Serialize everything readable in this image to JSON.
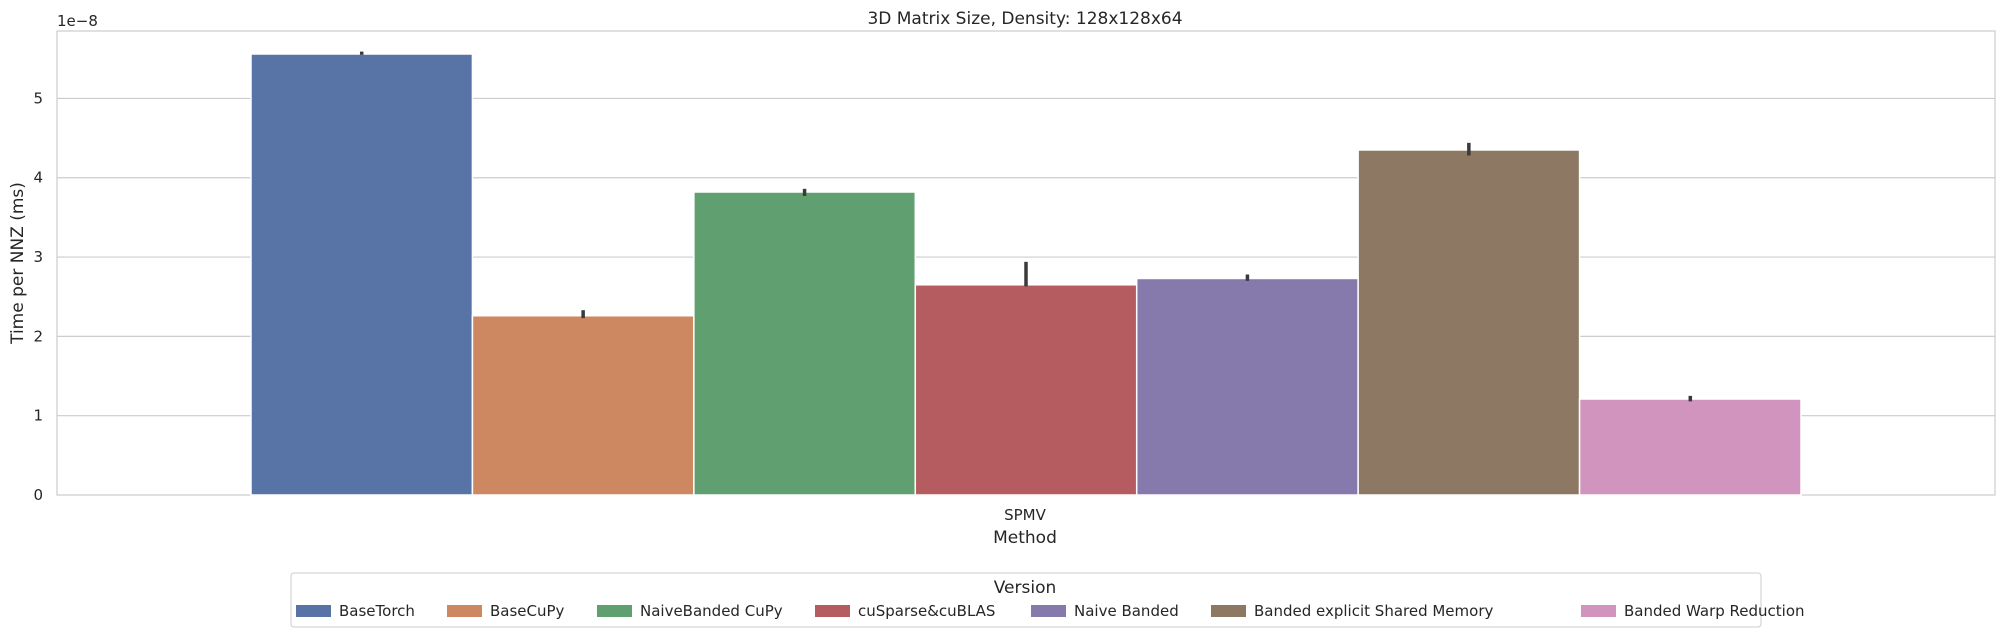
{
  "chart_data": {
    "type": "bar",
    "title": "3D Matrix Size, Density: 128x128x64",
    "xlabel": "Method",
    "ylabel": "Time per NNZ (ms)",
    "y_scale_label": "1e−8",
    "categories": [
      "SPMV"
    ],
    "ylim": [
      0,
      5.85
    ],
    "yticks": [
      "0",
      "1",
      "2",
      "3",
      "4",
      "5"
    ],
    "grid": true,
    "legend": {
      "title": "Version",
      "placement": "bottom-center"
    },
    "series": [
      {
        "name": "BaseTorch",
        "values": [
          5.56
        ],
        "error": [
          [
            5.55,
            5.59
          ]
        ],
        "color": "#5874a6"
      },
      {
        "name": "BaseCuPy",
        "values": [
          2.26
        ],
        "error": [
          [
            2.23,
            2.33
          ]
        ],
        "color": "#cd8862"
      },
      {
        "name": "NaiveBanded CuPy",
        "values": [
          3.82
        ],
        "error": [
          [
            3.77,
            3.86
          ]
        ],
        "color": "#60a070"
      },
      {
        "name": "cuSparse&cuBLAS",
        "values": [
          2.65
        ],
        "error": [
          [
            2.63,
            2.94
          ]
        ],
        "color": "#b45c60"
      },
      {
        "name": "Naive Banded",
        "values": [
          2.73
        ],
        "error": [
          [
            2.7,
            2.78
          ]
        ],
        "color": "#857aab"
      },
      {
        "name": "Banded explicit Shared Memory",
        "values": [
          4.35
        ],
        "error": [
          [
            4.28,
            4.44
          ]
        ],
        "color": "#8c7863"
      },
      {
        "name": "Banded Warp Reduction",
        "values": [
          1.21
        ],
        "error": [
          [
            1.18,
            1.25
          ]
        ],
        "color": "#d194be"
      }
    ]
  }
}
